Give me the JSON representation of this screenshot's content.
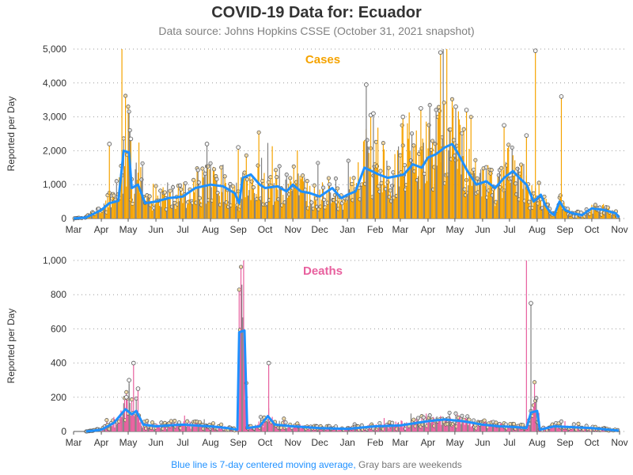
{
  "header": {
    "title": "COVID-19 Data for: Ecuador",
    "subtitle": "Data source: Johns Hopkins CSSE (October 31, 2021 snapshot)"
  },
  "footnote": {
    "blue_text": "Blue line is 7-day centered moving average,",
    "gray_text": "Gray bars are weekends"
  },
  "colors": {
    "cases": "#f5a300",
    "deaths": "#e8609e",
    "weekend": "#808080",
    "moving_average": "#1e90ff",
    "grid": "#999999"
  },
  "chart_data": [
    {
      "type": "bar",
      "panel_label": "Cases",
      "ylabel": "Reported per Day",
      "ylim": [
        0,
        5000
      ],
      "yticks": [
        "0",
        "1,000",
        "2,000",
        "3,000",
        "4,000",
        "5,000"
      ],
      "ytick_values": [
        0,
        1000,
        2000,
        3000,
        4000,
        5000
      ],
      "xlim": [
        "2020-03-01",
        "2021-11-01"
      ],
      "xticks": [
        "Mar",
        "Apr",
        "May",
        "Jun",
        "Jul",
        "Aug",
        "Sep",
        "Oct",
        "Nov",
        "Dec",
        "Jan",
        "Feb",
        "Mar",
        "Apr",
        "May",
        "Jun",
        "Jul",
        "Aug",
        "Sep",
        "Oct",
        "Nov"
      ],
      "grid": "horizontal dotted",
      "moving_average": [
        [
          "2020-03-01",
          0
        ],
        [
          "2020-03-15",
          30
        ],
        [
          "2020-04-01",
          250
        ],
        [
          "2020-04-10",
          450
        ],
        [
          "2020-04-20",
          520
        ],
        [
          "2020-04-26",
          2000
        ],
        [
          "2020-05-02",
          1950
        ],
        [
          "2020-05-05",
          900
        ],
        [
          "2020-05-12",
          1000
        ],
        [
          "2020-05-20",
          450
        ],
        [
          "2020-06-01",
          500
        ],
        [
          "2020-06-15",
          600
        ],
        [
          "2020-07-01",
          650
        ],
        [
          "2020-07-15",
          900
        ],
        [
          "2020-08-01",
          1000
        ],
        [
          "2020-08-15",
          950
        ],
        [
          "2020-08-28",
          750
        ],
        [
          "2020-09-02",
          450
        ],
        [
          "2020-09-06",
          1200
        ],
        [
          "2020-09-15",
          1300
        ],
        [
          "2020-09-25",
          1000
        ],
        [
          "2020-10-01",
          900
        ],
        [
          "2020-10-15",
          950
        ],
        [
          "2020-10-25",
          800
        ],
        [
          "2020-11-01",
          1000
        ],
        [
          "2020-11-10",
          800
        ],
        [
          "2020-11-20",
          750
        ],
        [
          "2020-12-01",
          650
        ],
        [
          "2020-12-15",
          900
        ],
        [
          "2020-12-25",
          600
        ],
        [
          "2021-01-01",
          700
        ],
        [
          "2021-01-10",
          800
        ],
        [
          "2021-01-20",
          1500
        ],
        [
          "2021-01-28",
          1400
        ],
        [
          "2021-02-05",
          1300
        ],
        [
          "2021-02-15",
          1200
        ],
        [
          "2021-02-25",
          1250
        ],
        [
          "2021-03-05",
          1300
        ],
        [
          "2021-03-15",
          1600
        ],
        [
          "2021-03-25",
          1500
        ],
        [
          "2021-04-01",
          1800
        ],
        [
          "2021-04-10",
          1900
        ],
        [
          "2021-04-20",
          2100
        ],
        [
          "2021-04-28",
          2200
        ],
        [
          "2021-05-05",
          1900
        ],
        [
          "2021-05-15",
          1400
        ],
        [
          "2021-05-25",
          1000
        ],
        [
          "2021-06-05",
          1100
        ],
        [
          "2021-06-15",
          900
        ],
        [
          "2021-06-25",
          1200
        ],
        [
          "2021-07-05",
          1400
        ],
        [
          "2021-07-12",
          1200
        ],
        [
          "2021-07-20",
          1000
        ],
        [
          "2021-07-28",
          500
        ],
        [
          "2021-08-05",
          700
        ],
        [
          "2021-08-10",
          400
        ],
        [
          "2021-08-15",
          200
        ],
        [
          "2021-08-20",
          100
        ],
        [
          "2021-08-26",
          500
        ],
        [
          "2021-09-01",
          250
        ],
        [
          "2021-09-10",
          150
        ],
        [
          "2021-09-20",
          100
        ],
        [
          "2021-10-01",
          300
        ],
        [
          "2021-10-15",
          250
        ],
        [
          "2021-10-28",
          150
        ],
        [
          "2021-10-31",
          30
        ]
      ],
      "spikes": [
        [
          "2020-04-10",
          2200,
          "weekday"
        ],
        [
          "2020-04-24",
          5000,
          "weekday"
        ],
        [
          "2020-05-04",
          2350,
          "weekday"
        ],
        [
          "2020-07-28",
          2200,
          "weekend"
        ],
        [
          "2020-09-01",
          2100,
          "weekday"
        ],
        [
          "2021-01-22",
          3950,
          "weekend"
        ],
        [
          "2021-01-27",
          3050,
          "weekday"
        ],
        [
          "2021-01-30",
          3100,
          "weekend"
        ],
        [
          "2021-03-04",
          3000,
          "weekday"
        ],
        [
          "2021-03-24",
          3250,
          "weekday"
        ],
        [
          "2021-04-15",
          4900,
          "weekday"
        ],
        [
          "2021-04-22",
          5000,
          "weekday"
        ],
        [
          "2021-05-02",
          3300,
          "weekend"
        ],
        [
          "2021-05-14",
          3200,
          "weekday"
        ],
        [
          "2021-06-25",
          2750,
          "weekday"
        ],
        [
          "2021-07-20",
          2450,
          "weekday"
        ],
        [
          "2021-07-30",
          4950,
          "weekday"
        ],
        [
          "2021-08-28",
          3600,
          "weekday"
        ]
      ]
    },
    {
      "type": "bar",
      "panel_label": "Deaths",
      "ylabel": "Reported per Day",
      "ylim": [
        0,
        1000
      ],
      "yticks": [
        "0",
        "200",
        "400",
        "600",
        "800",
        "1,000"
      ],
      "ytick_values": [
        0,
        200,
        400,
        600,
        800,
        1000
      ],
      "xlim": [
        "2020-03-01",
        "2021-11-01"
      ],
      "xticks": [
        "Mar",
        "Apr",
        "May",
        "Jun",
        "Jul",
        "Aug",
        "Sep",
        "Oct",
        "Nov",
        "Dec",
        "Jan",
        "Feb",
        "Mar",
        "Apr",
        "May",
        "Jun",
        "Jul",
        "Aug",
        "Sep",
        "Oct",
        "Nov"
      ],
      "grid": "horizontal dotted",
      "moving_average": [
        [
          "2020-03-15",
          0
        ],
        [
          "2020-04-01",
          10
        ],
        [
          "2020-04-15",
          50
        ],
        [
          "2020-04-28",
          130
        ],
        [
          "2020-05-05",
          100
        ],
        [
          "2020-05-10",
          120
        ],
        [
          "2020-05-18",
          40
        ],
        [
          "2020-06-01",
          30
        ],
        [
          "2020-06-15",
          35
        ],
        [
          "2020-07-01",
          40
        ],
        [
          "2020-07-15",
          35
        ],
        [
          "2020-08-01",
          30
        ],
        [
          "2020-08-20",
          20
        ],
        [
          "2020-08-31",
          10
        ],
        [
          "2020-09-02",
          580
        ],
        [
          "2020-09-08",
          590
        ],
        [
          "2020-09-11",
          20
        ],
        [
          "2020-09-25",
          30
        ],
        [
          "2020-10-04",
          90
        ],
        [
          "2020-10-12",
          40
        ],
        [
          "2020-11-01",
          30
        ],
        [
          "2020-12-01",
          20
        ],
        [
          "2021-01-01",
          15
        ],
        [
          "2021-02-01",
          30
        ],
        [
          "2021-03-01",
          35
        ],
        [
          "2021-04-01",
          60
        ],
        [
          "2021-04-20",
          70
        ],
        [
          "2021-05-10",
          60
        ],
        [
          "2021-06-01",
          40
        ],
        [
          "2021-06-20",
          30
        ],
        [
          "2021-07-10",
          25
        ],
        [
          "2021-07-20",
          20
        ],
        [
          "2021-07-25",
          110
        ],
        [
          "2021-08-01",
          120
        ],
        [
          "2021-08-04",
          10
        ],
        [
          "2021-08-20",
          30
        ],
        [
          "2021-09-10",
          25
        ],
        [
          "2021-10-01",
          20
        ],
        [
          "2021-10-20",
          10
        ],
        [
          "2021-10-31",
          5
        ]
      ],
      "spikes": [
        [
          "2020-04-29",
          200,
          "weekday"
        ],
        [
          "2020-05-02",
          300,
          "weekend"
        ],
        [
          "2020-05-07",
          400,
          "weekday"
        ],
        [
          "2020-05-12",
          250,
          "weekday"
        ],
        [
          "2020-09-07",
          1000,
          "weekday"
        ],
        [
          "2020-10-05",
          400,
          "weekday"
        ],
        [
          "2021-07-20",
          1000,
          "weekday"
        ],
        [
          "2021-07-25",
          750,
          "weekend"
        ]
      ]
    }
  ]
}
